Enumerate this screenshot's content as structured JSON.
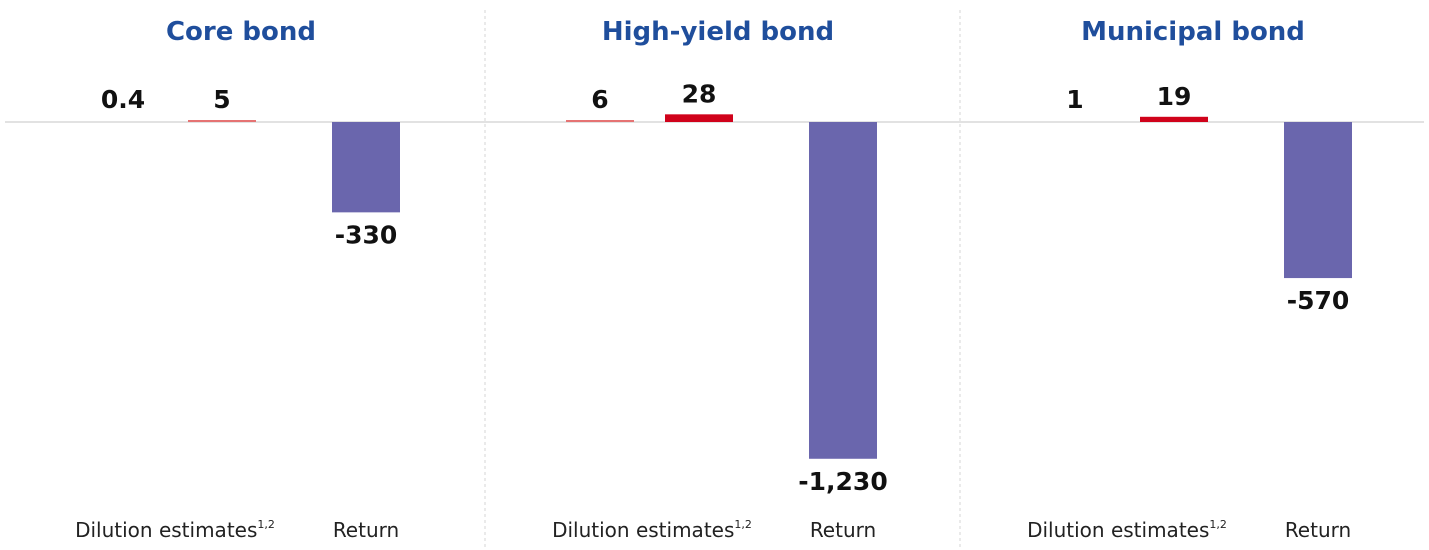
{
  "colors": {
    "title": "#1f4e9c",
    "dilution_light": "#e57373",
    "dilution_dark": "#d0021b",
    "return": "#6a66ad",
    "baseline": "#d9d9d9",
    "separator": "#d4d4d4"
  },
  "chart_data": [
    {
      "type": "bar",
      "title": "Core bond",
      "categories": [
        {
          "label": "Dilution estimates",
          "sup": "1,2"
        },
        {
          "label": "Return",
          "sup": ""
        }
      ],
      "series": [
        {
          "category": "Dilution estimates",
          "values": [
            {
              "value": 0.4,
              "label": "0.4",
              "shade": "none"
            },
            {
              "value": 5,
              "label": "5",
              "shade": "light"
            }
          ]
        },
        {
          "category": "Return",
          "values": [
            {
              "value": -330,
              "label": "-330",
              "shade": "return"
            }
          ]
        }
      ]
    },
    {
      "type": "bar",
      "title": "High-yield bond",
      "categories": [
        {
          "label": "Dilution estimates",
          "sup": "1,2"
        },
        {
          "label": "Return",
          "sup": ""
        }
      ],
      "series": [
        {
          "category": "Dilution estimates",
          "values": [
            {
              "value": 6,
              "label": "6",
              "shade": "light"
            },
            {
              "value": 28,
              "label": "28",
              "shade": "dark"
            }
          ]
        },
        {
          "category": "Return",
          "values": [
            {
              "value": -1230,
              "label": "-1,230",
              "shade": "return"
            }
          ]
        }
      ]
    },
    {
      "type": "bar",
      "title": "Municipal bond",
      "categories": [
        {
          "label": "Dilution estimates",
          "sup": "1,2"
        },
        {
          "label": "Return",
          "sup": ""
        }
      ],
      "series": [
        {
          "category": "Dilution estimates",
          "values": [
            {
              "value": 1,
              "label": "1",
              "shade": "none"
            },
            {
              "value": 19,
              "label": "19",
              "shade": "dark"
            }
          ]
        },
        {
          "category": "Return",
          "values": [
            {
              "value": -570,
              "label": "-570",
              "shade": "return"
            }
          ]
        }
      ]
    }
  ]
}
